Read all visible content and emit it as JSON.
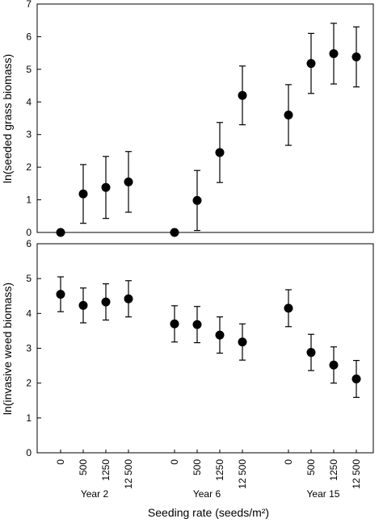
{
  "chart_data": [
    {
      "type": "scatter",
      "error_bars": true,
      "title": "",
      "xlabel": "",
      "ylabel": "ln(seeded grass biomass)",
      "ylim": [
        0,
        7
      ],
      "yticks": [
        0,
        1,
        2,
        3,
        4,
        5,
        6,
        7
      ],
      "grid": false,
      "reference_line_y": 0,
      "groups": [
        "Year 2",
        "Year 6",
        "Year 15"
      ],
      "categories": [
        "0",
        "500",
        "1250",
        "12 500"
      ],
      "series": [
        {
          "group": "Year 2",
          "values": [
            0.0,
            1.18,
            1.38,
            1.55
          ],
          "errors": [
            0,
            0.9,
            0.95,
            0.93
          ]
        },
        {
          "group": "Year 6",
          "values": [
            0.0,
            0.98,
            2.45,
            4.2
          ],
          "errors": [
            0,
            0.92,
            0.92,
            0.9
          ]
        },
        {
          "group": "Year 15",
          "values": [
            3.6,
            5.18,
            5.48,
            5.38
          ],
          "errors": [
            0.93,
            0.92,
            0.93,
            0.92
          ]
        }
      ]
    },
    {
      "type": "scatter",
      "error_bars": true,
      "title": "",
      "xlabel": "Seeding rate (seeds/m²)",
      "ylabel": "ln(invasive weed biomass)",
      "ylim": [
        0,
        6
      ],
      "yticks": [
        0,
        1,
        2,
        3,
        4,
        5,
        6
      ],
      "grid": false,
      "groups": [
        "Year 2",
        "Year 6",
        "Year 15"
      ],
      "categories": [
        "0",
        "500",
        "1250",
        "12 500"
      ],
      "series": [
        {
          "group": "Year 2",
          "values": [
            4.55,
            4.23,
            4.33,
            4.42
          ],
          "errors": [
            0.5,
            0.5,
            0.52,
            0.52
          ]
        },
        {
          "group": "Year 6",
          "values": [
            3.7,
            3.68,
            3.38,
            3.18
          ],
          "errors": [
            0.52,
            0.52,
            0.52,
            0.52
          ]
        },
        {
          "group": "Year 15",
          "values": [
            4.15,
            2.88,
            2.52,
            2.12
          ],
          "errors": [
            0.53,
            0.52,
            0.52,
            0.53
          ]
        }
      ]
    }
  ]
}
